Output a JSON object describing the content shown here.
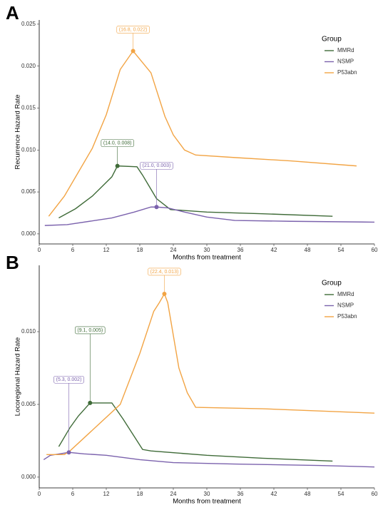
{
  "chart_data": [
    {
      "type": "line",
      "panel_label": "A",
      "xlabel": "Months from treatment",
      "ylabel": "Recurrence Hazard Rate",
      "xlim": [
        0,
        60
      ],
      "ylim": [
        -0.0012,
        0.0255
      ],
      "xticks": [
        0,
        6,
        12,
        18,
        24,
        30,
        36,
        42,
        48,
        54,
        60
      ],
      "yticks": [
        {
          "value": 0,
          "label": "0.000"
        },
        {
          "value": 0.005,
          "label": "0.005"
        },
        {
          "value": 0.01,
          "label": "0.010"
        },
        {
          "value": 0.015,
          "label": "0.015"
        },
        {
          "value": 0.02,
          "label": "0.020"
        },
        {
          "value": 0.025,
          "label": "0.025"
        }
      ],
      "legend_title": "Group",
      "legend": "top-right",
      "series": [
        {
          "name": "MMRd",
          "color": "#3f6b38",
          "x": [
            3.5,
            6.5,
            9.5,
            13,
            14,
            17.5,
            18.5,
            21,
            23.5,
            30,
            40,
            52.5
          ],
          "values": [
            0.0019,
            0.003,
            0.0045,
            0.0068,
            0.0081,
            0.008,
            0.007,
            0.0042,
            0.0029,
            0.0026,
            0.0024,
            0.0021
          ]
        },
        {
          "name": "NSMP",
          "color": "#7b62ad",
          "x": [
            1,
            5,
            10,
            13,
            17,
            20,
            21,
            23,
            26,
            30,
            35,
            45,
            60
          ],
          "values": [
            0.001,
            0.0011,
            0.0016,
            0.0019,
            0.0026,
            0.0032,
            0.0032,
            0.0031,
            0.0026,
            0.002,
            0.0016,
            0.0015,
            0.0014
          ]
        },
        {
          "name": "P53abn",
          "color": "#f2a444",
          "x": [
            1.7,
            4.5,
            9.5,
            12,
            14.5,
            16.8,
            20,
            22.5,
            24,
            26,
            28,
            35,
            45,
            56.8
          ],
          "values": [
            0.0021,
            0.0045,
            0.0102,
            0.0142,
            0.0196,
            0.0218,
            0.0192,
            0.014,
            0.0118,
            0.01,
            0.0094,
            0.0091,
            0.0087,
            0.0081
          ]
        }
      ],
      "annotations": [
        {
          "text": "(16.8, 0.022)",
          "x": 16.8,
          "y": 0.0218,
          "color": "#f2a444"
        },
        {
          "text": "(14.0, 0.008)",
          "x": 14,
          "y": 0.0081,
          "color": "#3f6b38"
        },
        {
          "text": "(21.0, 0.003)",
          "x": 21,
          "y": 0.0032,
          "color": "#7b62ad"
        }
      ]
    },
    {
      "type": "line",
      "panel_label": "B",
      "xlabel": "Months from treatment",
      "ylabel": "Locoregional Hazard Rate",
      "xlim": [
        0,
        60
      ],
      "ylim": [
        -0.00074,
        0.01456
      ],
      "xticks": [
        0,
        6,
        12,
        18,
        24,
        30,
        36,
        42,
        48,
        54,
        60
      ],
      "yticks": [
        {
          "value": 0,
          "label": "0.000"
        },
        {
          "value": 0.005,
          "label": "0.005"
        },
        {
          "value": 0.01,
          "label": "0.010"
        }
      ],
      "legend_title": "Group",
      "legend": "top-right",
      "series": [
        {
          "name": "MMRd",
          "color": "#3f6b38",
          "x": [
            3.5,
            5.5,
            7,
            9.1,
            13,
            15,
            18.5,
            20,
            30,
            40,
            52.5
          ],
          "values": [
            0.0021,
            0.0034,
            0.0042,
            0.0051,
            0.0051,
            0.004,
            0.0019,
            0.0018,
            0.0015,
            0.0013,
            0.0011
          ]
        },
        {
          "name": "NSMP",
          "color": "#7b62ad",
          "x": [
            0.8,
            2,
            5.3,
            8,
            12,
            18,
            24,
            35,
            50,
            60
          ],
          "values": [
            0.0012,
            0.0015,
            0.0017,
            0.0016,
            0.0015,
            0.0012,
            0.001,
            0.0009,
            0.0008,
            0.0007
          ]
        },
        {
          "name": "P53abn",
          "color": "#f2a444",
          "x": [
            1.3,
            4.5,
            5.5,
            14.5,
            18,
            20.5,
            21.5,
            22.4,
            23,
            25,
            26.5,
            28,
            40,
            60
          ],
          "values": [
            0.00155,
            0.00155,
            0.0018,
            0.005,
            0.0085,
            0.0114,
            0.012,
            0.0126,
            0.012,
            0.0075,
            0.0058,
            0.0048,
            0.0047,
            0.0044
          ]
        }
      ],
      "annotations": [
        {
          "text": "(22.4, 0.013)",
          "x": 22.4,
          "y": 0.0126,
          "color": "#f2a444"
        },
        {
          "text": "(9.1, 0.005)",
          "x": 9.1,
          "y": 0.0051,
          "color": "#3f6b38"
        },
        {
          "text": "(5.3, 0.002)",
          "x": 5.3,
          "y": 0.0017,
          "color": "#7b62ad"
        }
      ]
    }
  ]
}
